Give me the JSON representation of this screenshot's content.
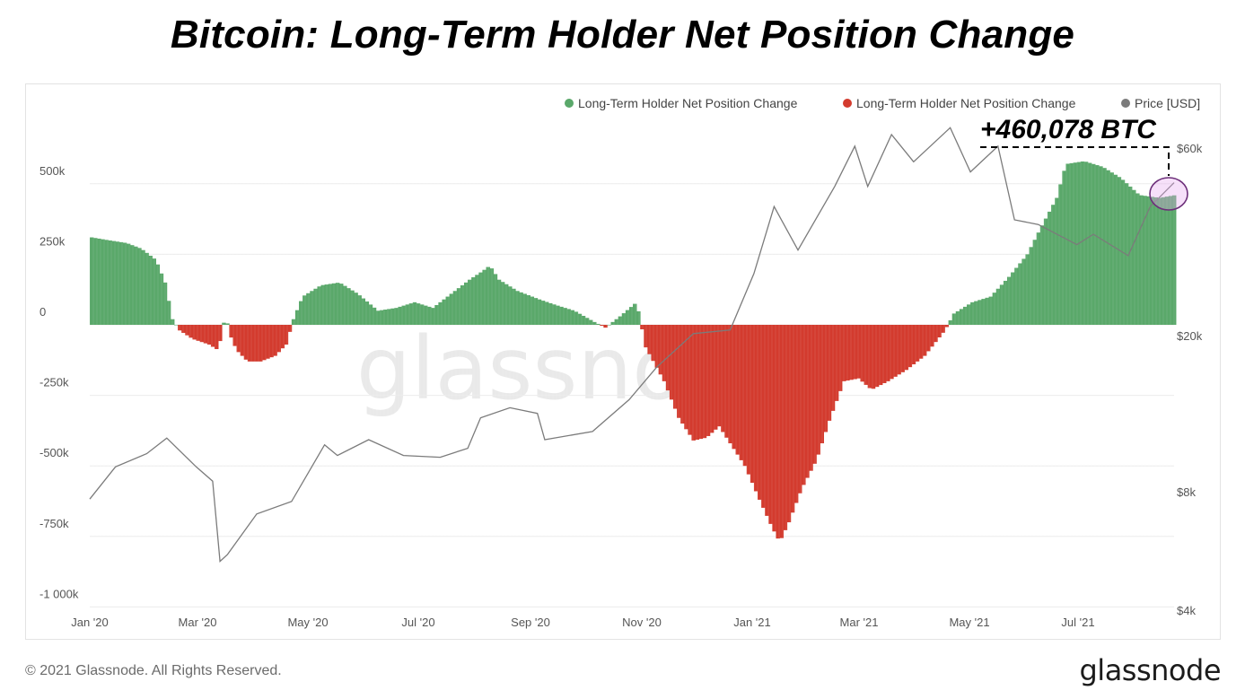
{
  "title": "Bitcoin: Long-Term Holder Net Position Change",
  "footer": {
    "copyright": "© 2021 Glassnode. All Rights Reserved.",
    "logo": "glassnode"
  },
  "watermark": "glassnode",
  "annotation": {
    "text": "+460,078 BTC",
    "value": 460078
  },
  "colors": {
    "positive": "#5aa86a",
    "negative": "#d33b2e",
    "price": "#7b7b7b",
    "highlight": "#e6a6ef"
  },
  "chart_data": {
    "type": "bar",
    "legend": [
      {
        "label": "Long-Term Holder Net Position Change",
        "color": "#5aa86a"
      },
      {
        "label": "Long-Term Holder Net Position Change",
        "color": "#d33b2e"
      },
      {
        "label": "Price [USD]",
        "color": "#7b7b7b"
      }
    ],
    "legend_position": "top-right",
    "x_ticks": [
      "Jan '20",
      "Mar '20",
      "May '20",
      "Jul '20",
      "Sep '20",
      "Nov '20",
      "Jan '21",
      "Mar '21",
      "May '21",
      "Jul '21"
    ],
    "y_left": {
      "ticks": [
        "500k",
        "250k",
        "0",
        "-250k",
        "-500k",
        "-750k",
        "-1 000k"
      ],
      "tick_values": [
        500000,
        250000,
        0,
        -250000,
        -500000,
        -750000,
        -1000000
      ],
      "ylim": [
        -1000000,
        500000
      ]
    },
    "y_right": {
      "ticks": [
        "$60k",
        "$20k",
        "$8k",
        "$4k"
      ],
      "tick_values": [
        60000,
        20000,
        8000,
        4000
      ],
      "scale": "log"
    },
    "series": [
      {
        "name": "Long-Term Holder Net Position Change",
        "unit": "BTC",
        "points": [
          [
            "2020-01-01",
            310000
          ],
          [
            "2020-01-10",
            300000
          ],
          [
            "2020-01-20",
            290000
          ],
          [
            "2020-01-28",
            270000
          ],
          [
            "2020-02-05",
            230000
          ],
          [
            "2020-02-10",
            150000
          ],
          [
            "2020-02-14",
            20000
          ],
          [
            "2020-02-18",
            -20000
          ],
          [
            "2020-02-25",
            -50000
          ],
          [
            "2020-03-05",
            -70000
          ],
          [
            "2020-03-10",
            -90000
          ],
          [
            "2020-03-14",
            40000
          ],
          [
            "2020-03-16",
            -30000
          ],
          [
            "2020-03-20",
            -90000
          ],
          [
            "2020-03-26",
            -130000
          ],
          [
            "2020-04-02",
            -130000
          ],
          [
            "2020-04-10",
            -110000
          ],
          [
            "2020-04-16",
            -70000
          ],
          [
            "2020-04-20",
            20000
          ],
          [
            "2020-04-25",
            100000
          ],
          [
            "2020-05-05",
            140000
          ],
          [
            "2020-05-15",
            150000
          ],
          [
            "2020-05-25",
            110000
          ],
          [
            "2020-06-05",
            50000
          ],
          [
            "2020-06-15",
            60000
          ],
          [
            "2020-06-25",
            80000
          ],
          [
            "2020-07-05",
            60000
          ],
          [
            "2020-07-15",
            110000
          ],
          [
            "2020-07-25",
            160000
          ],
          [
            "2020-08-01",
            190000
          ],
          [
            "2020-08-05",
            210000
          ],
          [
            "2020-08-10",
            160000
          ],
          [
            "2020-08-20",
            120000
          ],
          [
            "2020-09-01",
            90000
          ],
          [
            "2020-09-10",
            70000
          ],
          [
            "2020-09-20",
            50000
          ],
          [
            "2020-10-01",
            10000
          ],
          [
            "2020-10-07",
            -10000
          ],
          [
            "2020-10-15",
            30000
          ],
          [
            "2020-10-24",
            80000
          ],
          [
            "2020-10-29",
            -80000
          ],
          [
            "2020-11-08",
            -200000
          ],
          [
            "2020-11-16",
            -330000
          ],
          [
            "2020-11-24",
            -410000
          ],
          [
            "2020-12-01",
            -400000
          ],
          [
            "2020-12-08",
            -360000
          ],
          [
            "2020-12-15",
            -430000
          ],
          [
            "2020-12-22",
            -500000
          ],
          [
            "2020-12-30",
            -620000
          ],
          [
            "2021-01-06",
            -720000
          ],
          [
            "2021-01-10",
            -770000
          ],
          [
            "2021-01-15",
            -700000
          ],
          [
            "2021-01-22",
            -580000
          ],
          [
            "2021-01-30",
            -480000
          ],
          [
            "2021-02-06",
            -340000
          ],
          [
            "2021-02-14",
            -200000
          ],
          [
            "2021-02-22",
            -190000
          ],
          [
            "2021-03-01",
            -230000
          ],
          [
            "2021-03-10",
            -200000
          ],
          [
            "2021-03-20",
            -160000
          ],
          [
            "2021-03-30",
            -110000
          ],
          [
            "2021-04-10",
            -20000
          ],
          [
            "2021-04-15",
            40000
          ],
          [
            "2021-04-25",
            80000
          ],
          [
            "2021-05-05",
            100000
          ],
          [
            "2021-05-15",
            170000
          ],
          [
            "2021-05-25",
            250000
          ],
          [
            "2021-06-01",
            340000
          ],
          [
            "2021-06-10",
            450000
          ],
          [
            "2021-06-15",
            570000
          ],
          [
            "2021-06-25",
            580000
          ],
          [
            "2021-07-05",
            560000
          ],
          [
            "2021-07-15",
            520000
          ],
          [
            "2021-07-25",
            460000
          ],
          [
            "2021-08-05",
            450000
          ],
          [
            "2021-08-14",
            460078
          ]
        ]
      },
      {
        "name": "Price [USD]",
        "unit": "USD",
        "points": [
          [
            "2020-01-01",
            7200
          ],
          [
            "2020-01-15",
            8700
          ],
          [
            "2020-02-01",
            9400
          ],
          [
            "2020-02-12",
            10300
          ],
          [
            "2020-02-28",
            8700
          ],
          [
            "2020-03-08",
            8000
          ],
          [
            "2020-03-12",
            5000
          ],
          [
            "2020-03-16",
            5200
          ],
          [
            "2020-04-01",
            6600
          ],
          [
            "2020-04-20",
            7100
          ],
          [
            "2020-05-08",
            9900
          ],
          [
            "2020-05-15",
            9300
          ],
          [
            "2020-06-01",
            10200
          ],
          [
            "2020-06-20",
            9300
          ],
          [
            "2020-07-10",
            9200
          ],
          [
            "2020-07-25",
            9700
          ],
          [
            "2020-08-01",
            11600
          ],
          [
            "2020-08-17",
            12300
          ],
          [
            "2020-09-01",
            11900
          ],
          [
            "2020-09-05",
            10200
          ],
          [
            "2020-10-01",
            10700
          ],
          [
            "2020-10-21",
            12900
          ],
          [
            "2020-11-05",
            15600
          ],
          [
            "2020-11-25",
            19000
          ],
          [
            "2020-12-15",
            19400
          ],
          [
            "2020-12-28",
            27000
          ],
          [
            "2021-01-08",
            40000
          ],
          [
            "2021-01-21",
            31000
          ],
          [
            "2021-02-10",
            45000
          ],
          [
            "2021-02-21",
            57000
          ],
          [
            "2021-02-28",
            45000
          ],
          [
            "2021-03-13",
            61000
          ],
          [
            "2021-03-25",
            52000
          ],
          [
            "2021-04-14",
            63500
          ],
          [
            "2021-04-25",
            49000
          ],
          [
            "2021-05-10",
            57000
          ],
          [
            "2021-05-19",
            37000
          ],
          [
            "2021-06-01",
            36000
          ],
          [
            "2021-06-22",
            32000
          ],
          [
            "2021-07-01",
            34000
          ],
          [
            "2021-07-20",
            30000
          ],
          [
            "2021-08-01",
            40000
          ],
          [
            "2021-08-14",
            46000
          ]
        ]
      }
    ]
  }
}
